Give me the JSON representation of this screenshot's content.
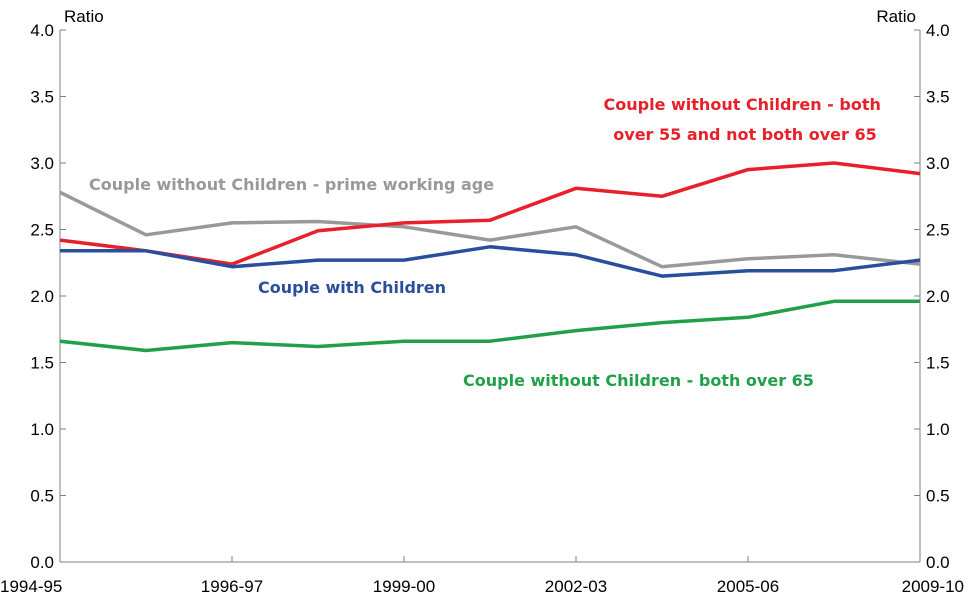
{
  "chart_data": {
    "type": "line",
    "x_tick_labels": [
      "1994-95",
      "1996-97",
      "1999-00",
      "2002-03",
      "2005-06",
      "2009-10"
    ],
    "y_ticks_left": [
      "0.0",
      "0.5",
      "1.0",
      "1.5",
      "2.0",
      "2.5",
      "3.0",
      "3.5",
      "4.0"
    ],
    "y_ticks_right": [
      "0.0",
      "0.5",
      "1.0",
      "1.5",
      "2.0",
      "2.5",
      "3.0",
      "3.5",
      "4.0"
    ],
    "ylabel_left": "Ratio",
    "ylabel_right": "Ratio",
    "ylim": [
      0,
      4
    ],
    "grid": false,
    "legend": "none; series labelled directly on the chart",
    "series": [
      {
        "name": "Couple without Children - prime working age",
        "color": "#999999",
        "values": [
          2.78,
          2.46,
          2.55,
          2.56,
          2.52,
          2.42,
          2.52,
          2.22,
          2.28,
          2.31,
          2.24
        ]
      },
      {
        "name": "Couple without Children - both over 55 and not both over 65",
        "name_lines": [
          "Couple without Children - both",
          "over 55 and not both over 65"
        ],
        "color": "#e8202a",
        "values": [
          2.42,
          2.34,
          2.24,
          2.49,
          2.55,
          2.57,
          2.81,
          2.75,
          2.95,
          3.0,
          2.92
        ]
      },
      {
        "name": "Couple with Children",
        "color": "#2a4e9c",
        "values": [
          2.34,
          2.34,
          2.22,
          2.27,
          2.27,
          2.37,
          2.31,
          2.15,
          2.19,
          2.19,
          2.27
        ]
      },
      {
        "name": "Couple without Children - both over 65",
        "color": "#21a04a",
        "values": [
          1.66,
          1.59,
          1.65,
          1.62,
          1.66,
          1.66,
          1.74,
          1.8,
          1.84,
          1.96,
          1.96
        ]
      }
    ]
  }
}
